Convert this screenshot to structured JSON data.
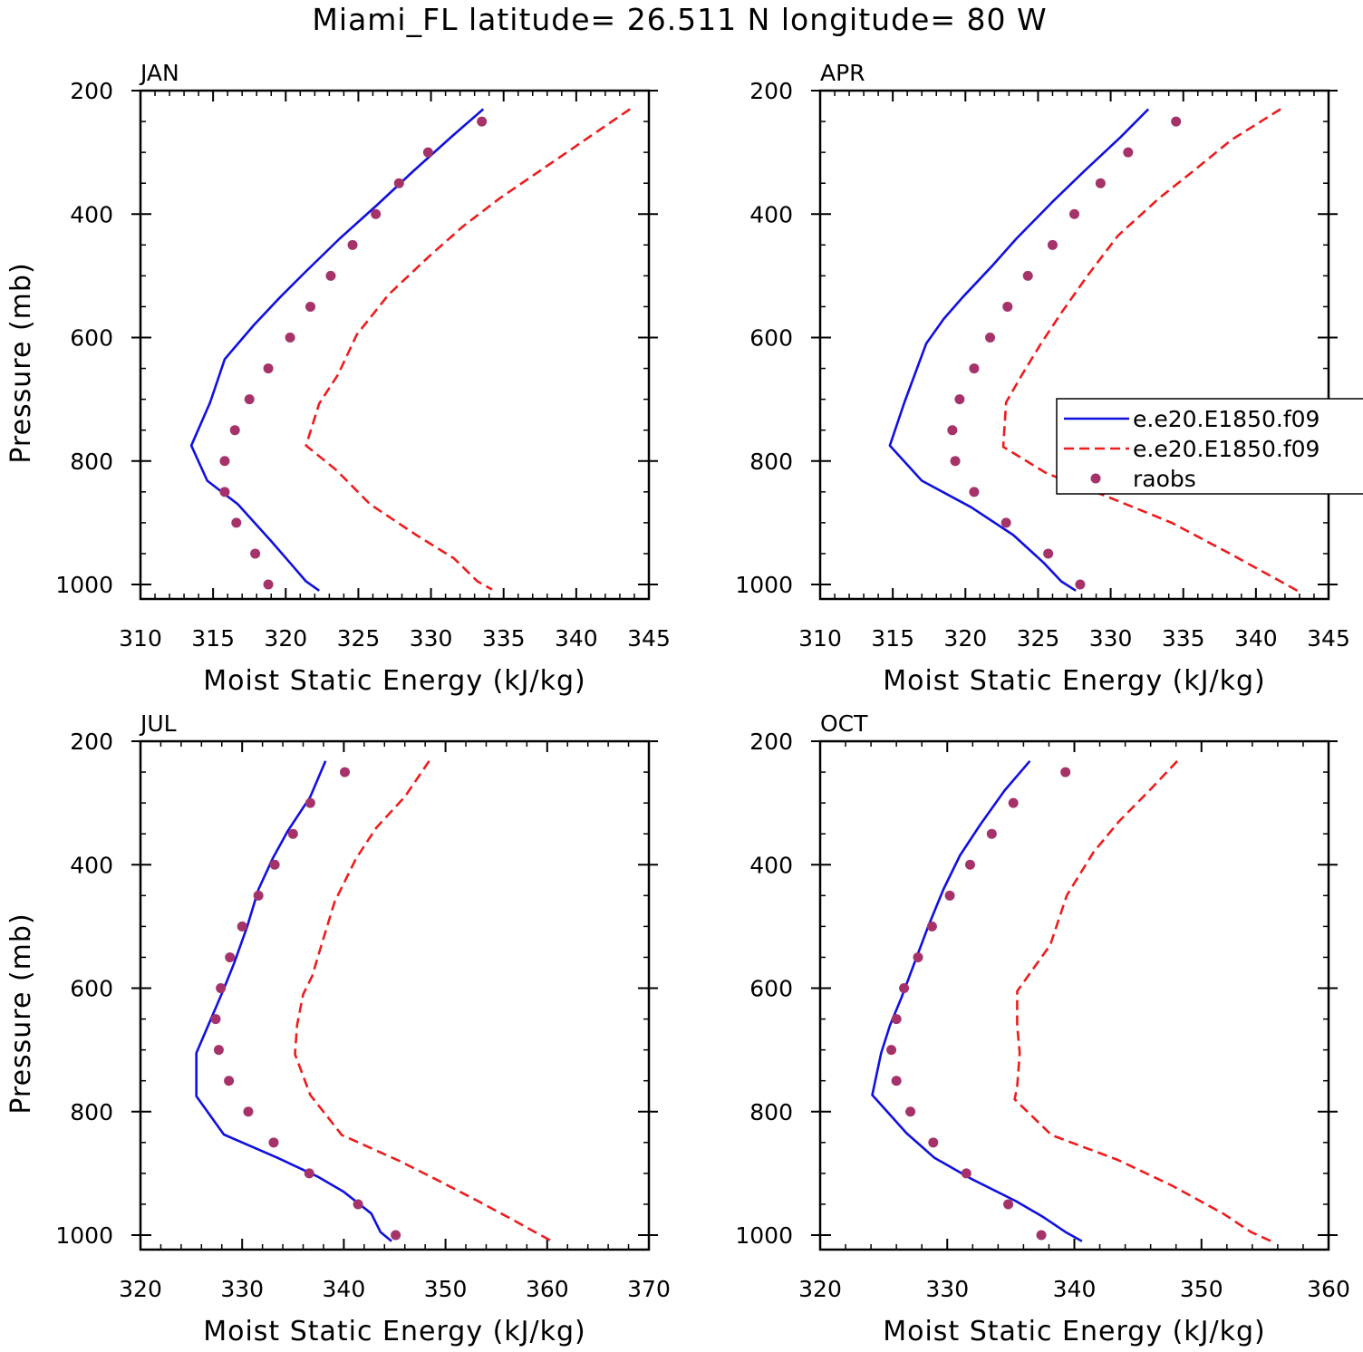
{
  "figure": {
    "title": "Miami_FL  latitude= 26.511 N longitude= 80 W"
  },
  "legend": {
    "entries": [
      {
        "label": "e.e20.E1850.f09",
        "style": "solid",
        "color": "#1010e0"
      },
      {
        "label": "e.e20.E1850.f09",
        "style": "dashed",
        "color": "#ee1c1c"
      },
      {
        "label": "raobs",
        "style": "dot",
        "color": "#a6326a"
      }
    ]
  },
  "colors": {
    "model_solid": "#1010e0",
    "model_dashed": "#ee1c1c",
    "raobs": "#a6326a"
  },
  "chart_data": [
    {
      "type": "line",
      "panel": "JAN",
      "xlabel": "Moist Static Energy (kJ/kg)",
      "ylabel": "Pressure (mb)",
      "xlim": [
        310,
        345
      ],
      "xticks": [
        310,
        315,
        320,
        325,
        330,
        335,
        340,
        345
      ],
      "ylim": [
        1000,
        200
      ],
      "yticks": [
        200,
        400,
        600,
        800,
        1000
      ],
      "pressure_levels": [
        250,
        300,
        350,
        400,
        450,
        500,
        550,
        600,
        650,
        700,
        750,
        800,
        850,
        900,
        950,
        1000
      ],
      "series": [
        {
          "style": "solid",
          "points": [
            [
              333.6,
              230
            ],
            [
              331.4,
              275
            ],
            [
              328.8,
              330
            ],
            [
              326.3,
              385
            ],
            [
              323.7,
              440
            ],
            [
              321.3,
              495
            ],
            [
              319.6,
              535
            ],
            [
              317.8,
              580
            ],
            [
              315.8,
              635
            ],
            [
              314.8,
              705
            ],
            [
              313.5,
              775
            ],
            [
              314.6,
              832
            ],
            [
              316.7,
              870
            ],
            [
              319.0,
              930
            ],
            [
              320.3,
              965
            ],
            [
              321.4,
              995
            ],
            [
              322.3,
              1010
            ]
          ]
        },
        {
          "style": "dashed",
          "points": [
            [
              343.7,
              230
            ],
            [
              340.9,
              275
            ],
            [
              337.8,
              325
            ],
            [
              334.7,
              375
            ],
            [
              332.2,
              420
            ],
            [
              329.8,
              470
            ],
            [
              327.1,
              530
            ],
            [
              324.9,
              595
            ],
            [
              323.6,
              660
            ],
            [
              322.3,
              707
            ],
            [
              321.4,
              775
            ],
            [
              323.5,
              815
            ],
            [
              325.8,
              870
            ],
            [
              329.0,
              920
            ],
            [
              331.6,
              958
            ],
            [
              333.2,
              995
            ],
            [
              334.2,
              1008
            ]
          ]
        },
        {
          "style": "dots",
          "points": [
            [
              333.5,
              250
            ],
            [
              329.8,
              300
            ],
            [
              327.8,
              350
            ],
            [
              326.2,
              400
            ],
            [
              324.6,
              450
            ],
            [
              323.1,
              500
            ],
            [
              321.7,
              550
            ],
            [
              320.3,
              600
            ],
            [
              318.8,
              650
            ],
            [
              317.5,
              700
            ],
            [
              316.5,
              750
            ],
            [
              315.8,
              800
            ],
            [
              315.8,
              850
            ],
            [
              316.6,
              900
            ],
            [
              317.9,
              950
            ],
            [
              318.8,
              1000
            ]
          ]
        }
      ]
    },
    {
      "type": "line",
      "panel": "APR",
      "xlabel": "Moist Static Energy (kJ/kg)",
      "ylabel": "",
      "xlim": [
        310,
        345
      ],
      "xticks": [
        310,
        315,
        320,
        325,
        330,
        335,
        340,
        345
      ],
      "ylim": [
        1000,
        200
      ],
      "yticks": [
        200,
        400,
        600,
        800,
        1000
      ],
      "pressure_levels": [
        250,
        300,
        350,
        400,
        450,
        500,
        550,
        600,
        650,
        700,
        750,
        800,
        850,
        900,
        950,
        1000
      ],
      "series": [
        {
          "style": "solid",
          "points": [
            [
              332.6,
              230
            ],
            [
              330.7,
              275
            ],
            [
              328.2,
              330
            ],
            [
              326.0,
              380
            ],
            [
              323.5,
              440
            ],
            [
              321.8,
              485
            ],
            [
              319.8,
              535
            ],
            [
              318.5,
              570
            ],
            [
              317.3,
              610
            ],
            [
              315.8,
              705
            ],
            [
              314.8,
              775
            ],
            [
              317.0,
              832
            ],
            [
              320.4,
              875
            ],
            [
              323.3,
              920
            ],
            [
              325.4,
              965
            ],
            [
              326.6,
              995
            ],
            [
              327.6,
              1010
            ]
          ]
        },
        {
          "style": "dashed",
          "points": [
            [
              341.7,
              230
            ],
            [
              338.3,
              280
            ],
            [
              335.7,
              330
            ],
            [
              333.3,
              375
            ],
            [
              330.5,
              435
            ],
            [
              328.4,
              500
            ],
            [
              326.6,
              560
            ],
            [
              325.2,
              610
            ],
            [
              323.9,
              660
            ],
            [
              322.8,
              705
            ],
            [
              322.6,
              777
            ],
            [
              325.6,
              820
            ],
            [
              330.0,
              860
            ],
            [
              334.2,
              900
            ],
            [
              338.2,
              950
            ],
            [
              341.7,
              995
            ],
            [
              343.0,
              1012
            ]
          ]
        },
        {
          "style": "dots",
          "points": [
            [
              334.5,
              250
            ],
            [
              331.2,
              300
            ],
            [
              329.3,
              350
            ],
            [
              327.5,
              400
            ],
            [
              326.0,
              450
            ],
            [
              324.3,
              500
            ],
            [
              322.9,
              550
            ],
            [
              321.7,
              600
            ],
            [
              320.6,
              650
            ],
            [
              319.6,
              700
            ],
            [
              319.1,
              750
            ],
            [
              319.3,
              800
            ],
            [
              320.6,
              850
            ],
            [
              322.8,
              900
            ],
            [
              325.7,
              950
            ],
            [
              327.9,
              1000
            ]
          ]
        }
      ]
    },
    {
      "type": "line",
      "panel": "JUL",
      "xlabel": "Moist Static Energy (kJ/kg)",
      "ylabel": "Pressure (mb)",
      "xlim": [
        320,
        370
      ],
      "xticks": [
        320,
        330,
        340,
        350,
        360,
        370
      ],
      "ylim": [
        1000,
        200
      ],
      "yticks": [
        200,
        400,
        600,
        800,
        1000
      ],
      "pressure_levels": [
        250,
        300,
        350,
        400,
        450,
        500,
        550,
        600,
        650,
        700,
        750,
        800,
        850,
        900,
        950,
        1000
      ],
      "series": [
        {
          "style": "solid",
          "points": [
            [
              338.2,
              232
            ],
            [
              336.7,
              290
            ],
            [
              334.5,
              345
            ],
            [
              333.0,
              390
            ],
            [
              331.6,
              440
            ],
            [
              330.5,
              500
            ],
            [
              329.2,
              560
            ],
            [
              328.1,
              605
            ],
            [
              325.5,
              705
            ],
            [
              325.5,
              775
            ],
            [
              328.2,
              837
            ],
            [
              333.5,
              875
            ],
            [
              337.4,
              905
            ],
            [
              340.0,
              930
            ],
            [
              342.7,
              965
            ],
            [
              343.6,
              995
            ],
            [
              344.7,
              1010
            ]
          ]
        },
        {
          "style": "dashed",
          "points": [
            [
              348.4,
              232
            ],
            [
              346.0,
              290
            ],
            [
              343.2,
              340
            ],
            [
              341.2,
              390
            ],
            [
              339.1,
              460
            ],
            [
              337.8,
              530
            ],
            [
              336.9,
              580
            ],
            [
              336.0,
              610
            ],
            [
              335.4,
              660
            ],
            [
              335.2,
              707
            ],
            [
              336.7,
              773
            ],
            [
              339.8,
              838
            ],
            [
              345.5,
              880
            ],
            [
              349.1,
              910
            ],
            [
              353.2,
              945
            ],
            [
              356.6,
              975
            ],
            [
              358.8,
              995
            ],
            [
              360.7,
              1012
            ]
          ]
        },
        {
          "style": "dots",
          "points": [
            [
              340.1,
              250
            ],
            [
              336.7,
              300
            ],
            [
              335.0,
              350
            ],
            [
              333.2,
              400
            ],
            [
              331.6,
              450
            ],
            [
              330.0,
              500
            ],
            [
              328.8,
              550
            ],
            [
              327.9,
              600
            ],
            [
              327.4,
              650
            ],
            [
              327.7,
              700
            ],
            [
              328.7,
              750
            ],
            [
              330.6,
              800
            ],
            [
              333.1,
              850
            ],
            [
              336.6,
              900
            ],
            [
              341.4,
              950
            ],
            [
              345.1,
              1000
            ]
          ]
        }
      ]
    },
    {
      "type": "line",
      "panel": "OCT",
      "xlabel": "Moist Static Energy (kJ/kg)",
      "ylabel": "",
      "xlim": [
        320,
        360
      ],
      "xticks": [
        320,
        330,
        340,
        350,
        360
      ],
      "ylim": [
        1000,
        200
      ],
      "yticks": [
        200,
        400,
        600,
        800,
        1000
      ],
      "pressure_levels": [
        250,
        300,
        350,
        400,
        450,
        500,
        550,
        600,
        650,
        700,
        750,
        800,
        850,
        900,
        950,
        1000
      ],
      "series": [
        {
          "style": "solid",
          "points": [
            [
              336.5,
              232
            ],
            [
              334.5,
              280
            ],
            [
              332.6,
              335
            ],
            [
              331.0,
              385
            ],
            [
              329.7,
              440
            ],
            [
              328.5,
              500
            ],
            [
              327.4,
              560
            ],
            [
              326.4,
              615
            ],
            [
              325.5,
              660
            ],
            [
              324.8,
              705
            ],
            [
              324.1,
              773
            ],
            [
              326.8,
              835
            ],
            [
              329.0,
              875
            ],
            [
              332.0,
              910
            ],
            [
              335.4,
              945
            ],
            [
              337.5,
              970
            ],
            [
              339.3,
              995
            ],
            [
              340.6,
              1010
            ]
          ]
        },
        {
          "style": "dashed",
          "points": [
            [
              348.1,
              232
            ],
            [
              345.9,
              280
            ],
            [
              343.5,
              330
            ],
            [
              341.5,
              380
            ],
            [
              339.4,
              450
            ],
            [
              338.1,
              530
            ],
            [
              335.5,
              605
            ],
            [
              335.5,
              660
            ],
            [
              335.7,
              705
            ],
            [
              335.5,
              760
            ],
            [
              335.3,
              780
            ],
            [
              338.2,
              838
            ],
            [
              343.4,
              878
            ],
            [
              347.7,
              920
            ],
            [
              351.7,
              965
            ],
            [
              353.9,
              995
            ],
            [
              355.5,
              1010
            ]
          ]
        },
        {
          "style": "dots",
          "points": [
            [
              339.3,
              250
            ],
            [
              335.2,
              300
            ],
            [
              333.5,
              350
            ],
            [
              331.8,
              400
            ],
            [
              330.2,
              450
            ],
            [
              328.8,
              500
            ],
            [
              327.7,
              550
            ],
            [
              326.6,
              600
            ],
            [
              326.0,
              650
            ],
            [
              325.6,
              700
            ],
            [
              326.0,
              750
            ],
            [
              327.1,
              800
            ],
            [
              328.9,
              850
            ],
            [
              331.5,
              900
            ],
            [
              334.8,
              950
            ],
            [
              337.4,
              1000
            ]
          ]
        }
      ]
    }
  ]
}
